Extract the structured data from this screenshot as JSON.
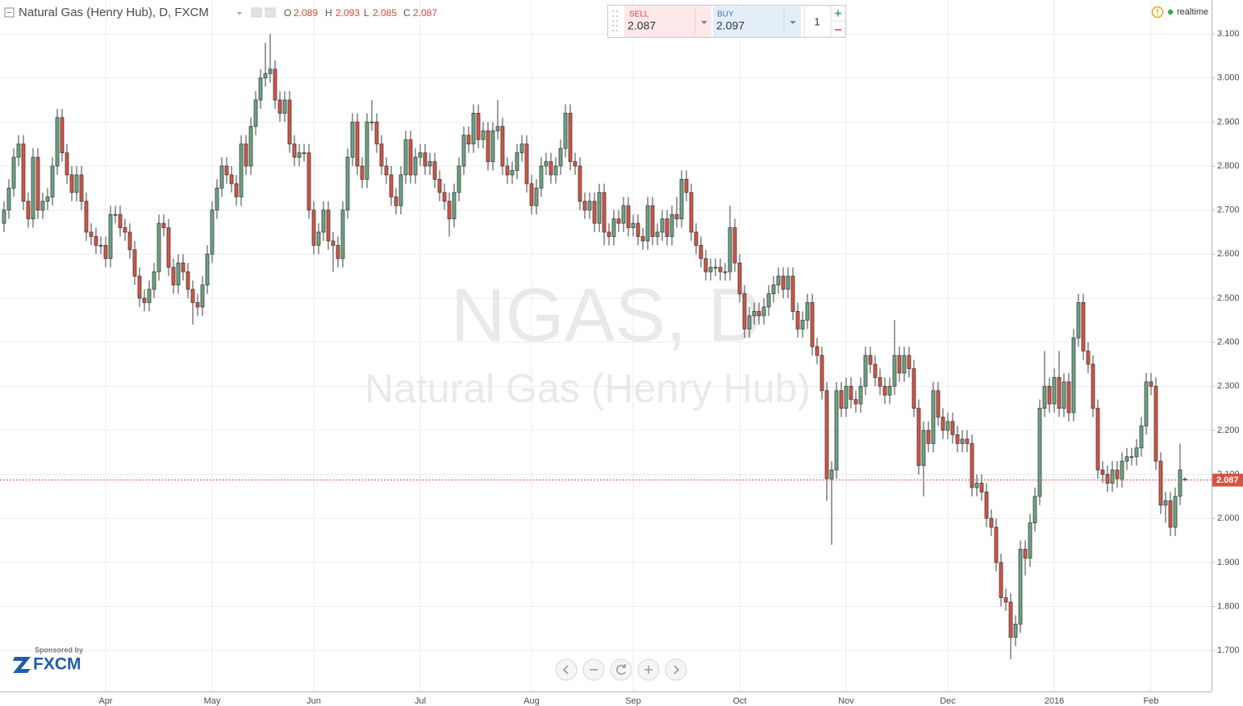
{
  "chart_data": {
    "type": "candlestick",
    "title": "Natural Gas (Henry Hub), D, FXCM",
    "watermark_symbol": "NGAS, D",
    "watermark_name": "Natural Gas (Henry Hub)",
    "up_color": "#6ba583",
    "down_color": "#d75442",
    "grid": true,
    "ylim": [
      1.607,
      3.177
    ],
    "yticks": [
      {
        "value": 1.7,
        "label": "1.700"
      },
      {
        "value": 1.8,
        "label": "1.800"
      },
      {
        "value": 1.9,
        "label": "1.900"
      },
      {
        "value": 2.0,
        "label": "2.000"
      },
      {
        "value": 2.1,
        "label": "2.100"
      },
      {
        "value": 2.2,
        "label": "2.200"
      },
      {
        "value": 2.3,
        "label": "2.300"
      },
      {
        "value": 2.4,
        "label": "2.400"
      },
      {
        "value": 2.5,
        "label": "2.500"
      },
      {
        "value": 2.6,
        "label": "2.600"
      },
      {
        "value": 2.7,
        "label": "2.700"
      },
      {
        "value": 2.8,
        "label": "2.800"
      },
      {
        "value": 2.9,
        "label": "2.900"
      },
      {
        "value": 3.0,
        "label": "3.000"
      },
      {
        "value": 3.1,
        "label": "3.100"
      }
    ],
    "categories": [
      null,
      null,
      null,
      null,
      null,
      null,
      null,
      null,
      null,
      null,
      null,
      null,
      null,
      null,
      null,
      null,
      null,
      null,
      null,
      null,
      null,
      "Apr",
      null,
      null,
      null,
      null,
      null,
      null,
      null,
      null,
      null,
      null,
      null,
      null,
      null,
      null,
      null,
      null,
      null,
      null,
      null,
      null,
      null,
      "May",
      null,
      null,
      null,
      null,
      null,
      null,
      null,
      null,
      null,
      null,
      null,
      null,
      null,
      null,
      null,
      null,
      null,
      null,
      null,
      null,
      "Jun",
      null,
      null,
      null,
      null,
      null,
      null,
      null,
      null,
      null,
      null,
      null,
      null,
      null,
      null,
      null,
      null,
      null,
      null,
      null,
      null,
      null,
      "Jul",
      null,
      null,
      null,
      null,
      null,
      null,
      null,
      null,
      null,
      null,
      null,
      null,
      null,
      null,
      null,
      null,
      null,
      null,
      null,
      null,
      null,
      null,
      "Aug",
      null,
      null,
      null,
      null,
      null,
      null,
      null,
      null,
      null,
      null,
      null,
      null,
      null,
      null,
      null,
      null,
      null,
      null,
      null,
      null,
      "Sep",
      null,
      null,
      null,
      null,
      null,
      null,
      null,
      null,
      null,
      null,
      null,
      null,
      null,
      null,
      null,
      null,
      null,
      null,
      null,
      null,
      null,
      "Oct",
      null,
      null,
      null,
      null,
      null,
      null,
      null,
      null,
      null,
      null,
      null,
      null,
      null,
      null,
      null,
      null,
      null,
      null,
      null,
      null,
      null,
      "Nov",
      null,
      null,
      null,
      null,
      null,
      null,
      null,
      null,
      null,
      null,
      null,
      null,
      null,
      null,
      null,
      null,
      null,
      null,
      null,
      null,
      "Dec",
      null,
      null,
      null,
      null,
      null,
      null,
      null,
      null,
      null,
      null,
      null,
      null,
      null,
      null,
      null,
      null,
      null,
      null,
      null,
      null,
      null,
      "2016",
      null,
      null,
      null,
      null,
      null,
      null,
      null,
      null,
      null,
      null,
      null,
      null,
      null,
      null,
      null,
      null,
      null,
      null,
      null,
      "Feb",
      null,
      null,
      null,
      null,
      null,
      null,
      null
    ],
    "open": [
      2.67,
      2.7,
      2.75,
      2.82,
      2.85,
      2.72,
      2.68,
      2.82,
      2.7,
      2.72,
      2.73,
      2.8,
      2.91,
      2.83,
      2.78,
      2.74,
      2.78,
      2.72,
      2.65,
      2.64,
      2.62,
      2.62,
      2.59,
      2.69,
      2.69,
      2.66,
      2.65,
      2.61,
      2.55,
      2.5,
      2.49,
      2.52,
      2.56,
      2.67,
      2.66,
      2.57,
      2.53,
      2.58,
      2.56,
      2.52,
      2.49,
      2.48,
      2.53,
      2.6,
      2.7,
      2.75,
      2.8,
      2.78,
      2.76,
      2.73,
      2.85,
      2.8,
      2.89,
      2.95,
      3.0,
      3.01,
      3.02,
      2.95,
      2.92,
      2.95,
      2.85,
      2.82,
      2.83,
      2.83,
      2.7,
      2.62,
      2.65,
      2.7,
      2.63,
      2.62,
      2.59,
      2.7,
      2.82,
      2.9,
      2.8,
      2.77,
      2.9,
      2.9,
      2.85,
      2.8,
      2.78,
      2.73,
      2.71,
      2.78,
      2.86,
      2.78,
      2.82,
      2.83,
      2.8,
      2.81,
      2.77,
      2.74,
      2.72,
      2.68,
      2.74,
      2.8,
      2.87,
      2.85,
      2.92,
      2.86,
      2.88,
      2.81,
      2.88,
      2.89,
      2.8,
      2.78,
      2.79,
      2.83,
      2.85,
      2.76,
      2.71,
      2.75,
      2.8,
      2.81,
      2.78,
      2.8,
      2.84,
      2.92,
      2.81,
      2.8,
      2.72,
      2.7,
      2.72,
      2.67,
      2.74,
      2.65,
      2.64,
      2.68,
      2.67,
      2.71,
      2.66,
      2.67,
      2.64,
      2.63,
      2.71,
      2.64,
      2.65,
      2.68,
      2.64,
      2.69,
      2.68,
      2.77,
      2.74,
      2.65,
      2.62,
      2.59,
      2.56,
      2.57,
      2.57,
      2.56,
      2.56,
      2.66,
      2.58,
      2.51,
      2.43,
      2.46,
      2.47,
      2.46,
      2.48,
      2.51,
      2.53,
      2.55,
      2.52,
      2.55,
      2.47,
      2.43,
      2.45,
      2.49,
      2.39,
      2.37,
      2.29,
      2.09,
      2.11,
      2.29,
      2.25,
      2.3,
      2.27,
      2.26,
      2.3,
      2.37,
      2.35,
      2.32,
      2.3,
      2.28,
      2.3,
      2.37,
      2.33,
      2.37,
      2.34,
      2.25,
      2.12,
      2.2,
      2.17,
      2.29,
      2.23,
      2.2,
      2.22,
      2.19,
      2.17,
      2.18,
      2.17,
      2.07,
      2.08,
      2.06,
      2.0,
      1.98,
      1.9,
      1.82,
      1.81,
      1.73,
      1.76,
      1.93,
      1.91,
      1.99,
      2.05,
      2.25,
      2.3,
      2.26,
      2.32,
      2.25,
      2.31,
      2.24,
      2.41,
      2.49,
      2.38,
      2.35,
      2.25,
      2.11,
      2.1,
      2.08,
      2.11,
      2.09,
      2.13,
      2.14,
      2.14,
      2.16,
      2.21,
      2.31,
      2.3,
      2.13,
      2.03,
      2.04,
      1.98,
      2.05,
      2.089
    ],
    "high": [
      2.72,
      2.77,
      2.84,
      2.87,
      2.87,
      2.74,
      2.84,
      2.84,
      2.74,
      2.75,
      2.82,
      2.93,
      2.93,
      2.85,
      2.8,
      2.8,
      2.8,
      2.74,
      2.67,
      2.66,
      2.64,
      2.64,
      2.71,
      2.71,
      2.71,
      2.68,
      2.67,
      2.63,
      2.57,
      2.52,
      2.54,
      2.58,
      2.69,
      2.69,
      2.68,
      2.59,
      2.6,
      2.6,
      2.58,
      2.54,
      2.51,
      2.55,
      2.62,
      2.72,
      2.77,
      2.82,
      2.82,
      2.8,
      2.78,
      2.87,
      2.87,
      2.91,
      2.97,
      3.02,
      3.08,
      3.1,
      3.04,
      2.97,
      2.97,
      2.97,
      2.87,
      2.85,
      2.85,
      2.85,
      2.72,
      2.67,
      2.72,
      2.72,
      2.65,
      2.64,
      2.72,
      2.84,
      2.92,
      2.92,
      2.82,
      2.92,
      2.95,
      2.92,
      2.87,
      2.82,
      2.8,
      2.75,
      2.8,
      2.88,
      2.88,
      2.84,
      2.85,
      2.85,
      2.83,
      2.83,
      2.79,
      2.76,
      2.74,
      2.76,
      2.82,
      2.89,
      2.89,
      2.94,
      2.94,
      2.9,
      2.9,
      2.9,
      2.95,
      2.91,
      2.82,
      2.81,
      2.85,
      2.87,
      2.87,
      2.78,
      2.77,
      2.82,
      2.83,
      2.83,
      2.82,
      2.86,
      2.94,
      2.94,
      2.83,
      2.82,
      2.74,
      2.74,
      2.74,
      2.76,
      2.76,
      2.67,
      2.7,
      2.7,
      2.73,
      2.73,
      2.69,
      2.69,
      2.66,
      2.73,
      2.73,
      2.67,
      2.7,
      2.7,
      2.71,
      2.73,
      2.79,
      2.79,
      2.76,
      2.67,
      2.64,
      2.61,
      2.59,
      2.59,
      2.59,
      2.58,
      2.71,
      2.68,
      2.6,
      2.53,
      2.48,
      2.49,
      2.49,
      2.5,
      2.53,
      2.55,
      2.57,
      2.57,
      2.57,
      2.57,
      2.49,
      2.47,
      2.51,
      2.51,
      2.41,
      2.39,
      2.31,
      2.13,
      2.31,
      2.31,
      2.32,
      2.32,
      2.29,
      2.32,
      2.39,
      2.39,
      2.37,
      2.34,
      2.32,
      2.32,
      2.45,
      2.39,
      2.39,
      2.39,
      2.36,
      2.27,
      2.22,
      2.22,
      2.31,
      2.31,
      2.25,
      2.24,
      2.24,
      2.21,
      2.2,
      2.2,
      2.19,
      2.1,
      2.1,
      2.08,
      2.02,
      2.0,
      1.92,
      1.84,
      1.83,
      1.78,
      1.95,
      1.95,
      2.01,
      2.07,
      2.27,
      2.38,
      2.32,
      2.34,
      2.38,
      2.33,
      2.33,
      2.43,
      2.51,
      2.51,
      2.4,
      2.37,
      2.27,
      2.13,
      2.12,
      2.13,
      2.13,
      2.15,
      2.16,
      2.16,
      2.18,
      2.23,
      2.33,
      2.33,
      2.32,
      2.15,
      2.06,
      2.06,
      2.07,
      2.17,
      2.093
    ],
    "low": [
      2.65,
      2.68,
      2.73,
      2.8,
      2.7,
      2.66,
      2.66,
      2.68,
      2.68,
      2.7,
      2.71,
      2.78,
      2.81,
      2.76,
      2.72,
      2.72,
      2.7,
      2.63,
      2.62,
      2.6,
      2.6,
      2.57,
      2.57,
      2.67,
      2.64,
      2.63,
      2.59,
      2.53,
      2.48,
      2.47,
      2.47,
      2.5,
      2.54,
      2.64,
      2.55,
      2.51,
      2.51,
      2.54,
      2.5,
      2.44,
      2.46,
      2.46,
      2.51,
      2.58,
      2.68,
      2.73,
      2.76,
      2.74,
      2.71,
      2.71,
      2.78,
      2.78,
      2.87,
      2.93,
      2.98,
      2.99,
      2.93,
      2.9,
      2.9,
      2.83,
      2.8,
      2.8,
      2.81,
      2.68,
      2.6,
      2.6,
      2.63,
      2.61,
      2.56,
      2.57,
      2.57,
      2.68,
      2.8,
      2.78,
      2.75,
      2.75,
      2.88,
      2.83,
      2.78,
      2.76,
      2.71,
      2.69,
      2.69,
      2.76,
      2.76,
      2.76,
      2.8,
      2.78,
      2.78,
      2.75,
      2.72,
      2.7,
      2.64,
      2.66,
      2.72,
      2.78,
      2.83,
      2.83,
      2.84,
      2.84,
      2.79,
      2.79,
      2.86,
      2.78,
      2.76,
      2.76,
      2.77,
      2.81,
      2.74,
      2.69,
      2.69,
      2.73,
      2.78,
      2.76,
      2.76,
      2.78,
      2.82,
      2.79,
      2.78,
      2.7,
      2.68,
      2.68,
      2.65,
      2.65,
      2.62,
      2.62,
      2.62,
      2.65,
      2.65,
      2.64,
      2.64,
      2.62,
      2.61,
      2.61,
      2.62,
      2.62,
      2.63,
      2.62,
      2.62,
      2.66,
      2.66,
      2.72,
      2.63,
      2.6,
      2.57,
      2.54,
      2.54,
      2.55,
      2.54,
      2.54,
      2.54,
      2.56,
      2.49,
      2.41,
      2.41,
      2.44,
      2.44,
      2.44,
      2.46,
      2.49,
      2.51,
      2.5,
      2.5,
      2.45,
      2.41,
      2.41,
      2.43,
      2.37,
      2.35,
      2.27,
      2.04,
      1.94,
      2.09,
      2.23,
      2.23,
      2.25,
      2.24,
      2.24,
      2.28,
      2.33,
      2.3,
      2.28,
      2.26,
      2.26,
      2.28,
      2.31,
      2.31,
      2.32,
      2.23,
      2.1,
      2.05,
      2.15,
      2.15,
      2.21,
      2.18,
      2.18,
      2.17,
      2.15,
      2.15,
      2.15,
      2.05,
      2.05,
      2.04,
      1.98,
      1.96,
      1.88,
      1.8,
      1.79,
      1.68,
      1.71,
      1.74,
      1.87,
      1.89,
      1.97,
      2.03,
      2.23,
      2.24,
      2.24,
      2.23,
      2.23,
      2.22,
      2.22,
      2.39,
      2.36,
      2.33,
      2.23,
      2.09,
      2.08,
      2.06,
      2.06,
      2.07,
      2.07,
      2.11,
      2.12,
      2.12,
      2.14,
      2.19,
      2.28,
      2.11,
      2.01,
      1.99,
      1.96,
      1.96,
      2.03,
      2.085
    ],
    "close": [
      2.7,
      2.75,
      2.82,
      2.85,
      2.72,
      2.68,
      2.82,
      2.7,
      2.72,
      2.73,
      2.8,
      2.91,
      2.83,
      2.78,
      2.74,
      2.78,
      2.72,
      2.65,
      2.64,
      2.62,
      2.62,
      2.59,
      2.69,
      2.69,
      2.66,
      2.65,
      2.61,
      2.55,
      2.5,
      2.49,
      2.52,
      2.56,
      2.67,
      2.66,
      2.57,
      2.53,
      2.58,
      2.56,
      2.52,
      2.49,
      2.48,
      2.53,
      2.6,
      2.7,
      2.75,
      2.8,
      2.78,
      2.76,
      2.73,
      2.85,
      2.8,
      2.89,
      2.95,
      3.0,
      3.01,
      3.02,
      2.95,
      2.92,
      2.95,
      2.85,
      2.82,
      2.83,
      2.83,
      2.7,
      2.62,
      2.65,
      2.7,
      2.63,
      2.62,
      2.59,
      2.7,
      2.82,
      2.9,
      2.8,
      2.77,
      2.9,
      2.9,
      2.85,
      2.8,
      2.78,
      2.73,
      2.71,
      2.78,
      2.86,
      2.78,
      2.82,
      2.83,
      2.8,
      2.81,
      2.77,
      2.74,
      2.72,
      2.68,
      2.74,
      2.8,
      2.87,
      2.85,
      2.92,
      2.86,
      2.88,
      2.81,
      2.88,
      2.89,
      2.8,
      2.78,
      2.79,
      2.83,
      2.85,
      2.76,
      2.71,
      2.75,
      2.8,
      2.81,
      2.78,
      2.8,
      2.84,
      2.92,
      2.81,
      2.8,
      2.72,
      2.7,
      2.72,
      2.67,
      2.74,
      2.65,
      2.64,
      2.68,
      2.67,
      2.71,
      2.66,
      2.67,
      2.64,
      2.63,
      2.71,
      2.64,
      2.65,
      2.68,
      2.64,
      2.69,
      2.68,
      2.77,
      2.74,
      2.65,
      2.62,
      2.59,
      2.56,
      2.57,
      2.57,
      2.56,
      2.56,
      2.66,
      2.58,
      2.51,
      2.43,
      2.46,
      2.47,
      2.46,
      2.48,
      2.51,
      2.53,
      2.55,
      2.52,
      2.55,
      2.47,
      2.43,
      2.45,
      2.49,
      2.39,
      2.37,
      2.29,
      2.09,
      2.11,
      2.29,
      2.25,
      2.3,
      2.27,
      2.26,
      2.3,
      2.37,
      2.35,
      2.32,
      2.3,
      2.28,
      2.3,
      2.37,
      2.33,
      2.37,
      2.34,
      2.25,
      2.12,
      2.2,
      2.17,
      2.29,
      2.23,
      2.2,
      2.22,
      2.19,
      2.17,
      2.18,
      2.17,
      2.07,
      2.08,
      2.06,
      2.0,
      1.98,
      1.9,
      1.82,
      1.81,
      1.73,
      1.76,
      1.93,
      1.91,
      1.99,
      2.05,
      2.25,
      2.3,
      2.26,
      2.32,
      2.25,
      2.31,
      2.24,
      2.41,
      2.49,
      2.38,
      2.35,
      2.25,
      2.11,
      2.1,
      2.08,
      2.11,
      2.09,
      2.13,
      2.14,
      2.14,
      2.16,
      2.21,
      2.31,
      2.3,
      2.13,
      2.03,
      2.04,
      1.98,
      2.05,
      2.11,
      2.087
    ]
  },
  "ui": {
    "ohlc_labels": [
      "O",
      "H",
      "L",
      "C"
    ],
    "sell_label": "SELL",
    "buy_label": "BUY",
    "buy_price": 2.097,
    "quantity": 1,
    "status": "realtime",
    "sponsor_label": "Sponsored by",
    "sponsor_brand": "FXCM"
  }
}
